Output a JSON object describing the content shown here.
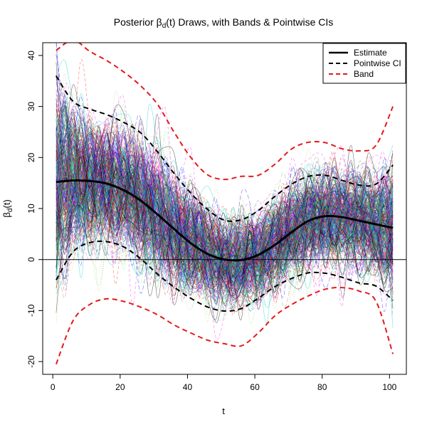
{
  "chart_data": {
    "type": "line",
    "title_prefix": "Posterior ",
    "title_symbol": "β",
    "title_sub": "d",
    "title_suffix": "(t) Draws, with Bands & Pointwise CIs",
    "xlabel": "t",
    "ylabel_symbol": "β",
    "ylabel_sub": "d",
    "ylabel_suffix": "(t)",
    "xlim": [
      -3,
      105
    ],
    "ylim": [
      -22.5,
      42.5
    ],
    "xticks": [
      0,
      20,
      40,
      60,
      80,
      100
    ],
    "yticks": [
      -20,
      -10,
      0,
      10,
      20,
      30,
      40
    ],
    "hline": 0,
    "legend_position": "top-right",
    "x": [
      1,
      6,
      11,
      16,
      21,
      26,
      31,
      36,
      41,
      46,
      51,
      56,
      61,
      66,
      71,
      76,
      81,
      86,
      91,
      96,
      101
    ],
    "series": [
      {
        "name": "Estimate",
        "style": "solid",
        "color": "#000000",
        "values": [
          15.2,
          15.5,
          15.4,
          14.9,
          13.6,
          11.6,
          8.9,
          6.0,
          3.2,
          1.1,
          0.0,
          -0.1,
          0.9,
          2.9,
          5.4,
          7.6,
          8.5,
          8.3,
          7.6,
          6.9,
          6.2
        ]
      },
      {
        "name": "Pointwise CI",
        "style": "dashed",
        "color": "#000000",
        "values": [
          36.0,
          31.0,
          29.5,
          28.4,
          26.9,
          24.9,
          21.2,
          16.9,
          13.0,
          9.8,
          7.7,
          7.8,
          9.6,
          12.4,
          14.8,
          16.3,
          16.5,
          15.5,
          14.6,
          14.8,
          18.5
        ]
      },
      {
        "name": "",
        "style": "dashed",
        "color": "#000000",
        "values": [
          -4.0,
          1.5,
          3.3,
          3.5,
          2.5,
          0.2,
          -2.8,
          -5.4,
          -7.6,
          -9.3,
          -10.1,
          -9.6,
          -7.6,
          -5.3,
          -3.7,
          -2.6,
          -2.7,
          -3.5,
          -4.6,
          -5.2,
          -8.0
        ]
      },
      {
        "name": "Band",
        "style": "dashed",
        "color": "#e31a1c",
        "values": [
          41.0,
          43.0,
          40.8,
          39.0,
          36.8,
          34.1,
          30.5,
          25.0,
          20.0,
          16.6,
          15.7,
          16.3,
          16.5,
          18.7,
          21.7,
          23.0,
          22.9,
          21.7,
          21.3,
          22.4,
          30.0
        ]
      },
      {
        "name": "",
        "style": "dashed",
        "color": "#e31a1c",
        "values": [
          -20.5,
          -12.0,
          -8.8,
          -7.7,
          -8.2,
          -9.3,
          -10.8,
          -12.8,
          -14.4,
          -15.8,
          -16.5,
          -16.9,
          -14.4,
          -11.0,
          -8.8,
          -7.1,
          -5.8,
          -5.5,
          -6.2,
          -8.2,
          -18.5
        ]
      }
    ],
    "draw_colors": [
      "#000000",
      "#ff0000",
      "#00cc00",
      "#0000ff",
      "#00cccc",
      "#ff00ff",
      "#999900",
      "#808080"
    ],
    "draw_count": 380
  }
}
